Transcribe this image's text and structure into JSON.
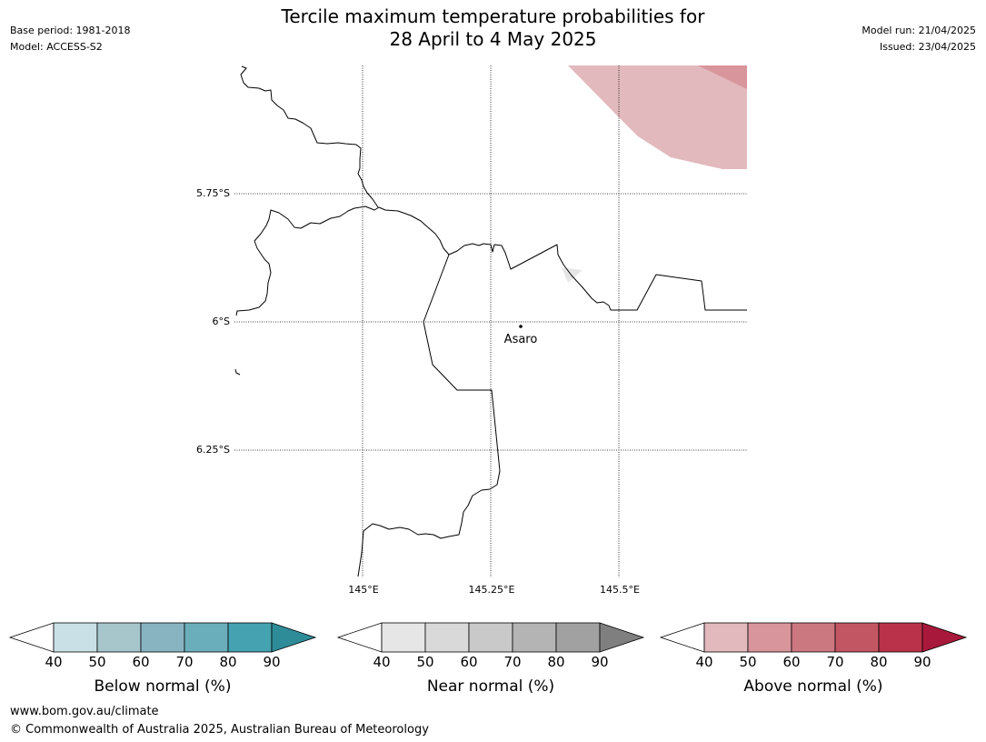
{
  "title": {
    "line1": "Tercile maximum temperature probabilities for",
    "line2": "28 April to 4 May 2025"
  },
  "header_left": {
    "base_period": "Base period: 1981-2018",
    "model": "Model: ACCESS-S2"
  },
  "header_right": {
    "model_run": "Model run: 21/04/2025",
    "issued": "Issued: 23/04/2025"
  },
  "map": {
    "latitude_labels": [
      "5.75°S",
      "6°S",
      "6.25°S"
    ],
    "longitude_labels": [
      "145°E",
      "145.25°E",
      "145.5°E"
    ],
    "place_label": "Asaro",
    "colors": {
      "above_40_50": "#e2b9bd",
      "above_50_60": "#d9959c",
      "near_40_50": "#e6e6e6",
      "boundary": "#000000"
    }
  },
  "colorbars": {
    "below": {
      "title": "Below normal (%)",
      "ticks": [
        "40",
        "50",
        "60",
        "70",
        "80",
        "90"
      ],
      "colors": [
        "#c9e1e6",
        "#a6c6cc",
        "#88b4c1",
        "#6aaebb",
        "#45a2b0",
        "#2e8c99"
      ]
    },
    "near": {
      "title": "Near normal (%)",
      "ticks": [
        "40",
        "50",
        "60",
        "70",
        "80",
        "90"
      ],
      "colors": [
        "#e6e6e6",
        "#d9d9d9",
        "#c9c9c9",
        "#b4b4b4",
        "#a1a1a1",
        "#7f7f7f"
      ]
    },
    "above": {
      "title": "Above normal (%)",
      "ticks": [
        "40",
        "50",
        "60",
        "70",
        "80",
        "90"
      ],
      "colors": [
        "#e2b9bd",
        "#d9959c",
        "#cc7880",
        "#c25763",
        "#b9324a",
        "#a8183a"
      ]
    }
  },
  "footer": {
    "url": "www.bom.gov.au/climate",
    "copyright": "© Commonwealth of Australia 2025, Australian Bureau of Meteorology"
  }
}
